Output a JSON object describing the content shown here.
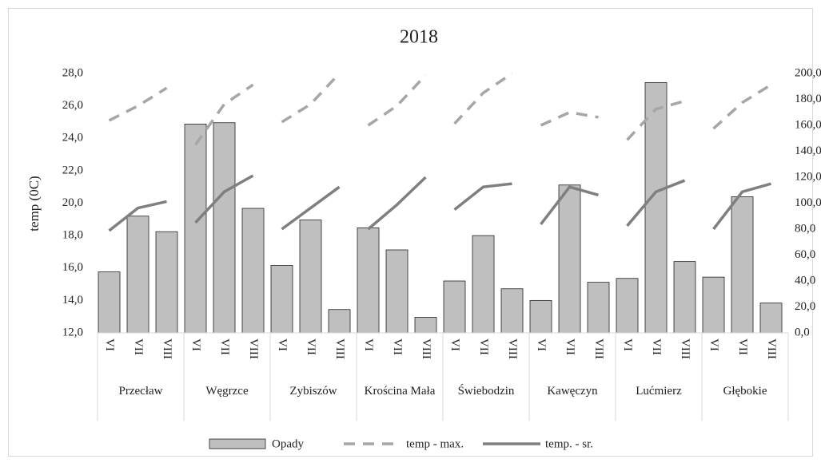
{
  "chart_data": {
    "type": "combo",
    "title": "2018",
    "y_label": "temp (0C)",
    "categories": [
      "VI",
      "VII",
      "VIII",
      "VI",
      "VII",
      "VIII",
      "VI",
      "VII",
      "VIII",
      "VI",
      "VII",
      "VIII",
      "VI",
      "VII",
      "VIII",
      "VI",
      "VII",
      "VIII",
      "VI",
      "VII",
      "VIII",
      "VI",
      "VII",
      "VIII"
    ],
    "groups": [
      "Przecław",
      "Węgrzce",
      "Zybiszów",
      "Krościna Mała",
      "Świebodzin",
      "Kawęczyn",
      "Lućmierz",
      "Głębokie"
    ],
    "series": [
      {
        "name": "Opady",
        "type": "bar",
        "axis": "y2",
        "color": "#bfbfbf",
        "values": [
          47,
          90,
          78,
          161,
          162,
          96,
          52,
          87,
          18,
          81,
          64,
          12,
          40,
          75,
          34,
          25,
          114,
          39,
          42,
          193,
          55,
          43,
          105,
          23
        ]
      },
      {
        "name": "temp - max.",
        "type": "line",
        "dashed": true,
        "color": "#a6a6a6",
        "values": [
          25.1,
          26.0,
          27.1,
          23.6,
          26.1,
          27.3,
          25.0,
          26.1,
          28.0,
          24.8,
          26.0,
          27.9,
          24.9,
          26.8,
          28.0,
          24.8,
          25.6,
          25.3,
          23.9,
          25.8,
          26.3,
          24.6,
          26.2,
          27.3
        ]
      },
      {
        "name": "temp. - sr.",
        "type": "line",
        "dashed": false,
        "color": "#7f7f7f",
        "values": [
          18.3,
          19.7,
          20.1,
          18.8,
          20.7,
          21.7,
          18.4,
          19.7,
          21.0,
          18.4,
          19.9,
          21.6,
          19.6,
          21.0,
          21.2,
          18.7,
          21.0,
          20.5,
          18.6,
          20.7,
          21.4,
          18.4,
          20.7,
          21.2
        ]
      }
    ],
    "ylim": [
      12,
      28
    ],
    "yticks": [
      {
        "value": 12,
        "label": "12,0"
      },
      {
        "value": 14,
        "label": "14,0"
      },
      {
        "value": 16,
        "label": "16,0"
      },
      {
        "value": 18,
        "label": "18,0"
      },
      {
        "value": 20,
        "label": "20,0"
      },
      {
        "value": 22,
        "label": "22,0"
      },
      {
        "value": 24,
        "label": "24,0"
      },
      {
        "value": 26,
        "label": "26,0"
      },
      {
        "value": 28,
        "label": "28,0"
      }
    ],
    "y2lim": [
      0,
      200
    ],
    "y2ticks": [
      {
        "value": 0,
        "label": "0,0"
      },
      {
        "value": 20,
        "label": "20,0"
      },
      {
        "value": 40,
        "label": "40,0"
      },
      {
        "value": 60,
        "label": "60,0"
      },
      {
        "value": 80,
        "label": "80,0"
      },
      {
        "value": 100,
        "label": "100,0"
      },
      {
        "value": 120,
        "label": "120,0"
      },
      {
        "value": 140,
        "label": "140,0"
      },
      {
        "value": 160,
        "label": "160,0"
      },
      {
        "value": 180,
        "label": "180,0"
      },
      {
        "value": 200,
        "label": "200,0"
      }
    ],
    "legend": "bottom"
  }
}
